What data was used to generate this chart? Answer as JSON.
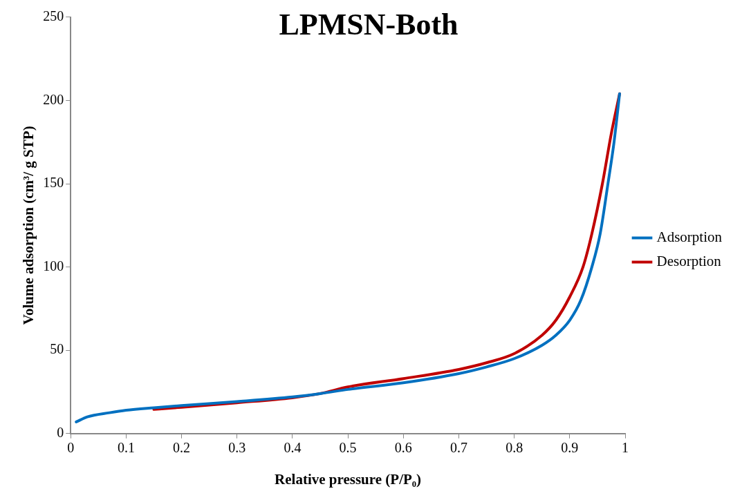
{
  "chart_data": {
    "type": "line",
    "title": "LPMSN-Both",
    "xlabel": "Relative pressure (P/P₀)",
    "ylabel": "Volume adsorption (cm³/ g STP)",
    "xlim": [
      0,
      1
    ],
    "xticks": [
      0,
      0.1,
      0.2,
      0.3,
      0.4,
      0.5,
      0.6,
      0.7,
      0.8,
      0.9,
      1
    ],
    "ylim": [
      0,
      250
    ],
    "yticks": [
      0,
      50,
      100,
      150,
      200,
      250
    ],
    "grid": false,
    "legend": "right",
    "marker": "none",
    "line_style": "solid",
    "series": [
      {
        "name": "Adsorption",
        "color": "#0070c0",
        "x": [
          0.01,
          0.03,
          0.07,
          0.1,
          0.15,
          0.2,
          0.3,
          0.4,
          0.45,
          0.5,
          0.6,
          0.7,
          0.75,
          0.8,
          0.85,
          0.875,
          0.9,
          0.92,
          0.94,
          0.955,
          0.969,
          0.98,
          0.99
        ],
        "values": [
          7,
          10,
          12.5,
          14,
          15.5,
          16.8,
          19.2,
          22,
          24,
          26.5,
          30.5,
          36,
          40,
          45,
          53,
          59,
          68,
          80,
          100,
          120,
          150,
          175,
          204
        ]
      },
      {
        "name": "Desorption",
        "color": "#c00000",
        "x": [
          0.15,
          0.2,
          0.3,
          0.4,
          0.45,
          0.5,
          0.6,
          0.7,
          0.75,
          0.8,
          0.85,
          0.875,
          0.9,
          0.924,
          0.94,
          0.959,
          0.975,
          0.99
        ],
        "values": [
          14.5,
          15.8,
          18.5,
          21.5,
          24,
          28,
          33,
          38.5,
          42.5,
          48,
          59,
          68,
          82,
          100,
          120,
          150,
          180,
          204
        ]
      }
    ]
  }
}
